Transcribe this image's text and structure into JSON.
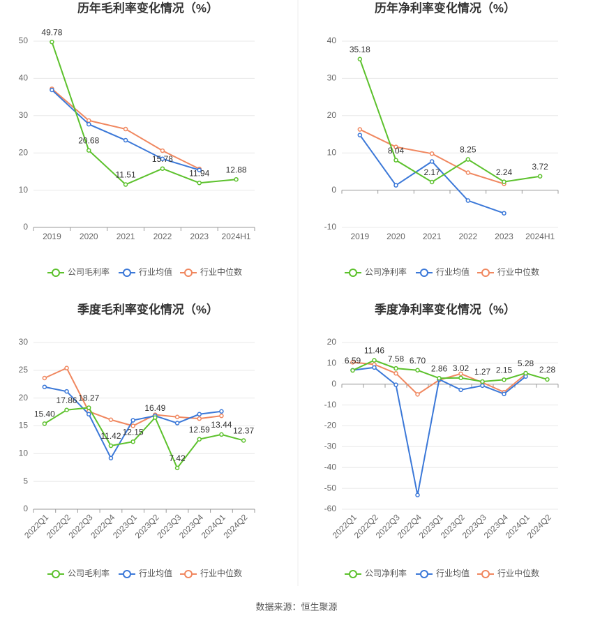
{
  "chart_data": [
    {
      "type": "line",
      "title": "历年毛利率变化情况（%）",
      "categories": [
        "2019",
        "2020",
        "2021",
        "2022",
        "2023",
        "2024H1"
      ],
      "series": [
        {
          "name": "公司毛利率",
          "color": "#5cc12c",
          "values": [
            49.78,
            20.68,
            11.51,
            15.78,
            11.94,
            12.88
          ],
          "value_labels": [
            "49.78",
            "20.68",
            "11.51",
            "15.78",
            "11.94",
            "12.88"
          ]
        },
        {
          "name": "行业均值",
          "color": "#3b78d8",
          "values": [
            36.9,
            27.7,
            23.4,
            18.4,
            15.4,
            null
          ]
        },
        {
          "name": "行业中位数",
          "color": "#f0875f",
          "values": [
            37.2,
            28.7,
            26.4,
            20.6,
            15.7,
            null
          ]
        }
      ],
      "ylim": [
        0,
        50
      ],
      "yticks": [
        0,
        10,
        20,
        30,
        40,
        50
      ],
      "grid": true,
      "legend": "bottom"
    },
    {
      "type": "line",
      "title": "历年净利率变化情况（%）",
      "categories": [
        "2019",
        "2020",
        "2021",
        "2022",
        "2023",
        "2024H1"
      ],
      "series": [
        {
          "name": "公司净利率",
          "color": "#5cc12c",
          "values": [
            35.18,
            8.04,
            2.17,
            8.25,
            2.24,
            3.72
          ],
          "value_labels": [
            "35.18",
            "8.04",
            "2.17",
            "8.25",
            "2.24",
            "3.72"
          ]
        },
        {
          "name": "行业均值",
          "color": "#3b78d8",
          "values": [
            14.8,
            1.3,
            7.7,
            -2.8,
            -6.2,
            null
          ]
        },
        {
          "name": "行业中位数",
          "color": "#f0875f",
          "values": [
            16.3,
            11.6,
            9.8,
            4.7,
            1.7,
            null
          ]
        }
      ],
      "ylim": [
        -10,
        40
      ],
      "yticks": [
        -10,
        0,
        10,
        20,
        30,
        40
      ],
      "grid": true,
      "legend": "bottom"
    },
    {
      "type": "line",
      "title": "季度毛利率变化情况（%）",
      "categories": [
        "2022Q1",
        "2022Q2",
        "2022Q3",
        "2022Q4",
        "2023Q1",
        "2023Q2",
        "2023Q3",
        "2023Q4",
        "2024Q1",
        "2024Q2"
      ],
      "series": [
        {
          "name": "公司毛利率",
          "color": "#5cc12c",
          "values": [
            15.4,
            17.86,
            18.27,
            11.42,
            12.15,
            16.49,
            7.42,
            12.59,
            13.44,
            12.37
          ],
          "value_labels": [
            "15.40",
            "17.86",
            "18.27",
            "11.42",
            "12.15",
            "16.49",
            "7.42",
            "12.59",
            "13.44",
            "12.37"
          ]
        },
        {
          "name": "行业均值",
          "color": "#3b78d8",
          "values": [
            22.0,
            21.2,
            17.1,
            9.2,
            16.0,
            16.8,
            15.5,
            17.1,
            17.6,
            null
          ]
        },
        {
          "name": "行业中位数",
          "color": "#f0875f",
          "values": [
            23.6,
            25.4,
            17.6,
            16.1,
            15.0,
            17.0,
            16.6,
            16.3,
            16.8,
            null
          ]
        }
      ],
      "ylim": [
        0,
        30
      ],
      "yticks": [
        0,
        5,
        10,
        15,
        20,
        25,
        30
      ],
      "grid": true,
      "legend": "bottom"
    },
    {
      "type": "line",
      "title": "季度净利率变化情况（%）",
      "categories": [
        "2022Q1",
        "2022Q2",
        "2022Q3",
        "2022Q4",
        "2023Q1",
        "2023Q2",
        "2023Q3",
        "2023Q4",
        "2024Q1",
        "2024Q2"
      ],
      "series": [
        {
          "name": "公司净利率",
          "color": "#5cc12c",
          "values": [
            6.59,
            11.46,
            7.58,
            6.7,
            2.86,
            3.02,
            1.27,
            2.15,
            5.28,
            2.28
          ],
          "value_labels": [
            "6.59",
            "11.46",
            "7.58",
            "6.70",
            "2.86",
            "3.02",
            "1.27",
            "2.15",
            "5.28",
            "2.28"
          ]
        },
        {
          "name": "行业均值",
          "color": "#3b78d8",
          "values": [
            6.7,
            8.0,
            -0.3,
            -53.2,
            2.3,
            -2.7,
            -0.7,
            -4.7,
            3.7,
            null
          ]
        },
        {
          "name": "行业中位数",
          "color": "#f0875f",
          "values": [
            10.5,
            9.5,
            5.2,
            -4.9,
            2.0,
            5.0,
            0.8,
            -3.8,
            4.8,
            null
          ]
        }
      ],
      "ylim": [
        -60,
        20
      ],
      "yticks": [
        -60,
        -50,
        -40,
        -30,
        -20,
        -10,
        0,
        10,
        20
      ],
      "grid": true,
      "legend": "bottom"
    }
  ],
  "source": "数据来源：恒生聚源"
}
